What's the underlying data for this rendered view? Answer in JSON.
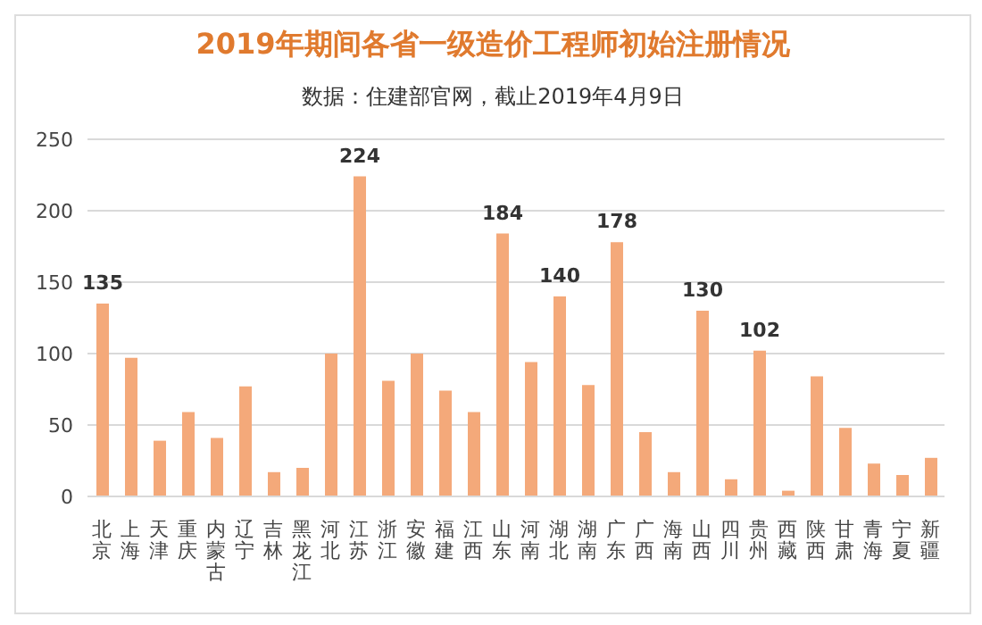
{
  "chart_data": {
    "type": "bar",
    "title": "2019年期间各省一级造价工程师初始注册情况",
    "subtitle": "数据：住建部官网，截止2019年4月9日",
    "categories": [
      "北京",
      "上海",
      "天津",
      "重庆",
      "内蒙古",
      "辽宁",
      "吉林",
      "黑龙江",
      "河北",
      "江苏",
      "浙江",
      "安徽",
      "福建",
      "江西",
      "山东",
      "河南",
      "湖北",
      "湖南",
      "广东",
      "广西",
      "海南",
      "山西",
      "四川",
      "贵州",
      "西藏",
      "陕西",
      "甘肃",
      "青海",
      "宁夏",
      "新疆"
    ],
    "values": [
      135,
      97,
      39,
      59,
      41,
      77,
      17,
      20,
      100,
      224,
      81,
      100,
      74,
      59,
      184,
      94,
      140,
      78,
      178,
      45,
      17,
      130,
      12,
      102,
      4,
      84,
      48,
      23,
      15,
      27
    ],
    "value_labels": [
      "135",
      null,
      null,
      null,
      null,
      null,
      null,
      null,
      null,
      "224",
      null,
      null,
      null,
      null,
      "184",
      null,
      "140",
      null,
      "178",
      null,
      null,
      "130",
      null,
      "102",
      null,
      null,
      null,
      null,
      null,
      null
    ],
    "color": "#f4a97a",
    "ylim": [
      0,
      250
    ],
    "yticks": [
      0,
      50,
      100,
      150,
      200,
      250
    ],
    "grid": "y"
  }
}
